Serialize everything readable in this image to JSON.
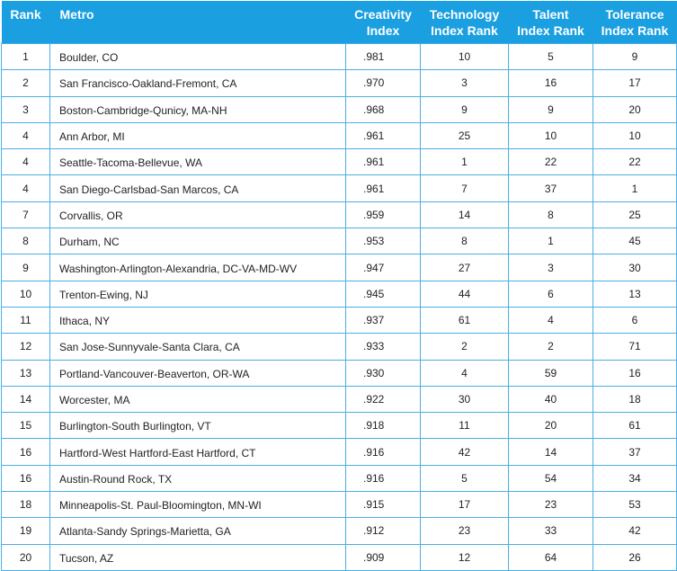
{
  "headers": {
    "rank": "Rank",
    "metro": "Metro",
    "creativity": [
      "Creativity",
      "Index"
    ],
    "technology": [
      "Technology",
      "Index Rank"
    ],
    "talent": [
      "Talent",
      "Index Rank"
    ],
    "tolerance": [
      "Tolerance",
      "Index Rank"
    ]
  },
  "rows": [
    {
      "rank": "1",
      "metro": "Boulder, CO",
      "creativity": ".981",
      "technology": "10",
      "talent": "5",
      "tolerance": "9"
    },
    {
      "rank": "2",
      "metro": "San Francisco-Oakland-Fremont, CA",
      "creativity": ".970",
      "technology": "3",
      "talent": "16",
      "tolerance": "17"
    },
    {
      "rank": "3",
      "metro": "Boston-Cambridge-Qunicy, MA-NH",
      "creativity": ".968",
      "technology": "9",
      "talent": "9",
      "tolerance": "20"
    },
    {
      "rank": "4",
      "metro": "Ann Arbor, MI",
      "creativity": ".961",
      "technology": "25",
      "talent": "10",
      "tolerance": "10"
    },
    {
      "rank": "4",
      "metro": "Seattle-Tacoma-Bellevue, WA",
      "creativity": ".961",
      "technology": "1",
      "talent": "22",
      "tolerance": "22"
    },
    {
      "rank": "4",
      "metro": "San Diego-Carlsbad-San Marcos, CA",
      "creativity": ".961",
      "technology": "7",
      "talent": "37",
      "tolerance": "1"
    },
    {
      "rank": "7",
      "metro": "Corvallis, OR",
      "creativity": ".959",
      "technology": "14",
      "talent": "8",
      "tolerance": "25"
    },
    {
      "rank": "8",
      "metro": "Durham, NC",
      "creativity": ".953",
      "technology": "8",
      "talent": "1",
      "tolerance": "45"
    },
    {
      "rank": "9",
      "metro": "Washington-Arlington-Alexandria, DC-VA-MD-WV",
      "creativity": ".947",
      "technology": "27",
      "talent": "3",
      "tolerance": "30"
    },
    {
      "rank": "10",
      "metro": "Trenton-Ewing, NJ",
      "creativity": ".945",
      "technology": "44",
      "talent": "6",
      "tolerance": "13"
    },
    {
      "rank": "11",
      "metro": "Ithaca, NY",
      "creativity": ".937",
      "technology": "61",
      "talent": "4",
      "tolerance": "6"
    },
    {
      "rank": "12",
      "metro": "San Jose-Sunnyvale-Santa Clara, CA",
      "creativity": ".933",
      "technology": "2",
      "talent": "2",
      "tolerance": "71"
    },
    {
      "rank": "13",
      "metro": "Portland-Vancouver-Beaverton, OR-WA",
      "creativity": ".930",
      "technology": "4",
      "talent": "59",
      "tolerance": "16"
    },
    {
      "rank": "14",
      "metro": "Worcester, MA",
      "creativity": ".922",
      "technology": "30",
      "talent": "40",
      "tolerance": "18"
    },
    {
      "rank": "15",
      "metro": "Burlington-South Burlington, VT",
      "creativity": ".918",
      "technology": "11",
      "talent": "20",
      "tolerance": "61"
    },
    {
      "rank": "16",
      "metro": "Hartford-West Hartford-East Hartford, CT",
      "creativity": ".916",
      "technology": "42",
      "talent": "14",
      "tolerance": "37"
    },
    {
      "rank": "16",
      "metro": "Austin-Round Rock, TX",
      "creativity": ".916",
      "technology": "5",
      "talent": "54",
      "tolerance": "34"
    },
    {
      "rank": "18",
      "metro": "Minneapolis-St. Paul-Bloomington, MN-WI",
      "creativity": ".915",
      "technology": "17",
      "talent": "23",
      "tolerance": "53"
    },
    {
      "rank": "19",
      "metro": "Atlanta-Sandy Springs-Marietta, GA",
      "creativity": ".912",
      "technology": "23",
      "talent": "33",
      "tolerance": "42"
    },
    {
      "rank": "20",
      "metro": "Tucson, AZ",
      "creativity": ".909",
      "technology": "12",
      "talent": "64",
      "tolerance": "26"
    }
  ]
}
